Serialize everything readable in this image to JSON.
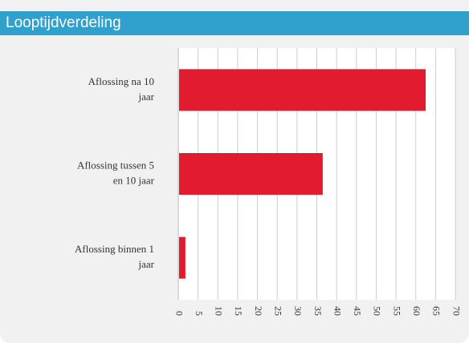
{
  "header": {
    "title": "Looptijdverdeling"
  },
  "colors": {
    "header": "#30a0cc",
    "bar": "#e31b2f",
    "grid": "#cccccc",
    "plot_bg": "#ffffff",
    "panel_bg": "#f1f1f1"
  },
  "chart_data": {
    "type": "bar",
    "orientation": "horizontal",
    "title": "",
    "xlabel": "",
    "ylabel": "",
    "categories": [
      "Aflossing na 10 jaar",
      "Aflossing tussen 5 en 10 jaar",
      "Aflossing binnen 1 jaar"
    ],
    "category_lines": [
      [
        "Aflossing na 10",
        "jaar"
      ],
      [
        "Aflossing tussen 5",
        "en 10 jaar"
      ],
      [
        "Aflossing binnen 1",
        "jaar"
      ]
    ],
    "values": [
      62.5,
      36.5,
      1.8
    ],
    "xlim": [
      0,
      70
    ],
    "ticks": [
      "0",
      "5",
      "10",
      "15",
      "20",
      "25",
      "30",
      "35",
      "40",
      "45",
      "50",
      "55",
      "60",
      "65",
      "70"
    ],
    "grid": true,
    "legend": "none"
  }
}
